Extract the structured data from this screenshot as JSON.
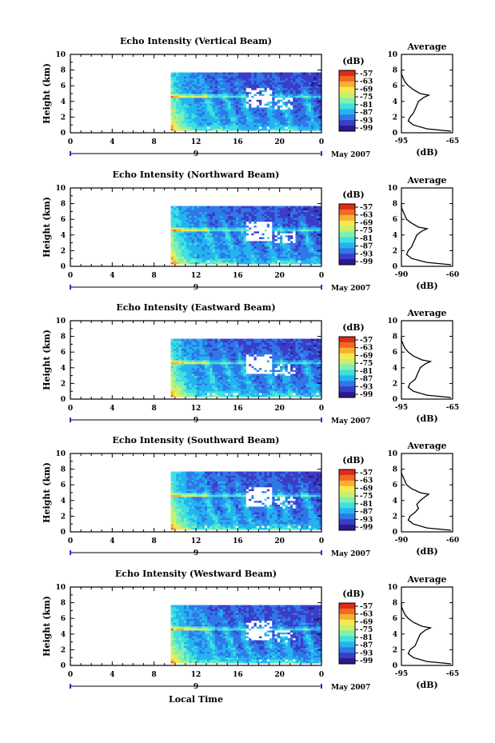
{
  "figure": {
    "xlabel": "Local Time",
    "date_label": "9",
    "month_label": "May 2007",
    "colorbar_unit": "(dB)",
    "colorbar_ticks": [
      "-57",
      "-63",
      "-69",
      "-75",
      "-81",
      "-87",
      "-93",
      "-99"
    ],
    "colors": {
      "cmap": [
        "#2a1a8c",
        "#3a3dc8",
        "#2f78e8",
        "#23b4f0",
        "#3fe0e0",
        "#7ff0b0",
        "#c8f070",
        "#f8e850",
        "#f8b030",
        "#f06a20",
        "#e02a18"
      ],
      "no_data": "#ffffff",
      "line": "#000000"
    }
  },
  "chart_data": [
    {
      "type": "heatmap",
      "title": "Echo Intensity (Vertical Beam)",
      "ylabel": "Height (km)",
      "xlabel": "",
      "xticks": [
        "0",
        "4",
        "8",
        "12",
        "16",
        "20",
        "0"
      ],
      "yticks": [
        "0",
        "2",
        "4",
        "6",
        "8",
        "10"
      ],
      "xlim": [
        0,
        24
      ],
      "ylim": [
        0,
        10
      ],
      "data_extent": {
        "x": [
          9.6,
          24
        ],
        "y": [
          0.3,
          7.7
        ]
      },
      "bright_layer_km": 4.7,
      "clim": [
        -99,
        -57
      ],
      "profile": {
        "title": "Average",
        "xlabel": "(dB)",
        "xticks": [
          "-95",
          "-65"
        ],
        "xlim": [
          -95,
          -65
        ],
        "ylim": [
          0,
          10
        ],
        "height": [
          0.2,
          0.5,
          1.0,
          1.5,
          2.0,
          2.5,
          3.0,
          3.5,
          4.0,
          4.5,
          4.8,
          5.0,
          5.5,
          6.0,
          6.5,
          7.0,
          7.5,
          8.0
        ],
        "value": [
          -66,
          -80,
          -88,
          -91,
          -90,
          -88,
          -87,
          -86,
          -85,
          -82,
          -79,
          -84,
          -88,
          -91,
          -93,
          -94,
          -95,
          -95
        ]
      }
    },
    {
      "type": "heatmap",
      "title": "Echo Intensity (Northward Beam)",
      "ylabel": "Height (km)",
      "xlabel": "",
      "xticks": [
        "0",
        "4",
        "8",
        "12",
        "16",
        "20",
        "0"
      ],
      "yticks": [
        "0",
        "2",
        "4",
        "6",
        "8",
        "10"
      ],
      "xlim": [
        0,
        24
      ],
      "ylim": [
        0,
        10
      ],
      "data_extent": {
        "x": [
          9.6,
          24
        ],
        "y": [
          0.3,
          7.7
        ]
      },
      "bright_layer_km": 4.7,
      "clim": [
        -99,
        -57
      ],
      "profile": {
        "title": "Average",
        "xlabel": "(dB)",
        "xticks": [
          "-90",
          "-60"
        ],
        "xlim": [
          -90,
          -60
        ],
        "ylim": [
          0,
          10
        ],
        "height": [
          0.2,
          0.5,
          1.0,
          1.5,
          2.0,
          2.5,
          3.0,
          3.5,
          4.0,
          4.5,
          4.8,
          5.0,
          5.5,
          6.0,
          6.5,
          7.0,
          7.5,
          8.0
        ],
        "value": [
          -61,
          -75,
          -84,
          -87,
          -86,
          -84,
          -83,
          -82,
          -81,
          -78,
          -75,
          -80,
          -84,
          -87,
          -88,
          -89,
          -90,
          -90
        ]
      }
    },
    {
      "type": "heatmap",
      "title": "Echo Intensity (Eastward Beam)",
      "ylabel": "Height (km)",
      "xlabel": "",
      "xticks": [
        "0",
        "4",
        "8",
        "12",
        "16",
        "20",
        "0"
      ],
      "yticks": [
        "0",
        "2",
        "4",
        "6",
        "8",
        "10"
      ],
      "xlim": [
        0,
        24
      ],
      "ylim": [
        0,
        10
      ],
      "data_extent": {
        "x": [
          9.6,
          24
        ],
        "y": [
          0.3,
          7.7
        ]
      },
      "bright_layer_km": 4.7,
      "clim": [
        -99,
        -57
      ],
      "profile": {
        "title": "Average",
        "xlabel": "(dB)",
        "xticks": [
          "-95",
          "-65"
        ],
        "xlim": [
          -95,
          -65
        ],
        "ylim": [
          0,
          10
        ],
        "height": [
          0.2,
          0.5,
          1.0,
          1.5,
          2.0,
          2.5,
          3.0,
          3.5,
          4.0,
          4.5,
          4.8,
          5.0,
          5.5,
          6.0,
          6.5,
          7.0,
          7.5,
          8.0
        ],
        "value": [
          -66,
          -80,
          -88,
          -91,
          -90,
          -87,
          -86,
          -85,
          -84,
          -81,
          -78,
          -83,
          -88,
          -91,
          -93,
          -94,
          -95,
          -95
        ]
      }
    },
    {
      "type": "heatmap",
      "title": "Echo Intensity (Southward Beam)",
      "ylabel": "Height (km)",
      "xlabel": "",
      "xticks": [
        "0",
        "4",
        "8",
        "12",
        "16",
        "20",
        "0"
      ],
      "yticks": [
        "0",
        "2",
        "4",
        "6",
        "8",
        "10"
      ],
      "xlim": [
        0,
        24
      ],
      "ylim": [
        0,
        10
      ],
      "data_extent": {
        "x": [
          9.6,
          24
        ],
        "y": [
          0.3,
          7.7
        ]
      },
      "bright_layer_km": 4.7,
      "clim": [
        -99,
        -57
      ],
      "profile": {
        "title": "Average",
        "xlabel": "(dB)",
        "xticks": [
          "-90",
          "-60"
        ],
        "xlim": [
          -90,
          -60
        ],
        "ylim": [
          0,
          10
        ],
        "height": [
          0.2,
          0.5,
          1.0,
          1.5,
          2.0,
          2.5,
          3.0,
          3.5,
          4.0,
          4.5,
          4.8,
          5.0,
          5.5,
          6.0,
          6.5,
          7.0,
          7.5,
          8.0
        ],
        "value": [
          -61,
          -75,
          -83,
          -86,
          -85,
          -82,
          -80,
          -81,
          -79,
          -76,
          -74,
          -79,
          -84,
          -87,
          -88,
          -89,
          -90,
          -90
        ]
      }
    },
    {
      "type": "heatmap",
      "title": "Echo Intensity (Westward Beam)",
      "ylabel": "Height (km)",
      "xlabel": "Local Time",
      "xticks": [
        "0",
        "4",
        "8",
        "12",
        "16",
        "20",
        "0"
      ],
      "yticks": [
        "0",
        "2",
        "4",
        "6",
        "8",
        "10"
      ],
      "xlim": [
        0,
        24
      ],
      "ylim": [
        0,
        10
      ],
      "data_extent": {
        "x": [
          9.6,
          24
        ],
        "y": [
          0.3,
          7.7
        ]
      },
      "bright_layer_km": 4.7,
      "clim": [
        -99,
        -57
      ],
      "profile": {
        "title": "Average",
        "xlabel": "(dB)",
        "xticks": [
          "-95",
          "-65"
        ],
        "xlim": [
          -95,
          -65
        ],
        "ylim": [
          0,
          10
        ],
        "height": [
          0.2,
          0.5,
          1.0,
          1.5,
          2.0,
          2.5,
          3.0,
          3.5,
          4.0,
          4.5,
          4.8,
          5.0,
          5.5,
          6.0,
          6.5,
          7.0,
          7.5,
          8.0
        ],
        "value": [
          -66,
          -80,
          -88,
          -91,
          -90,
          -87,
          -86,
          -85,
          -84,
          -81,
          -78,
          -83,
          -88,
          -91,
          -93,
          -94,
          -95,
          -95
        ]
      }
    }
  ]
}
